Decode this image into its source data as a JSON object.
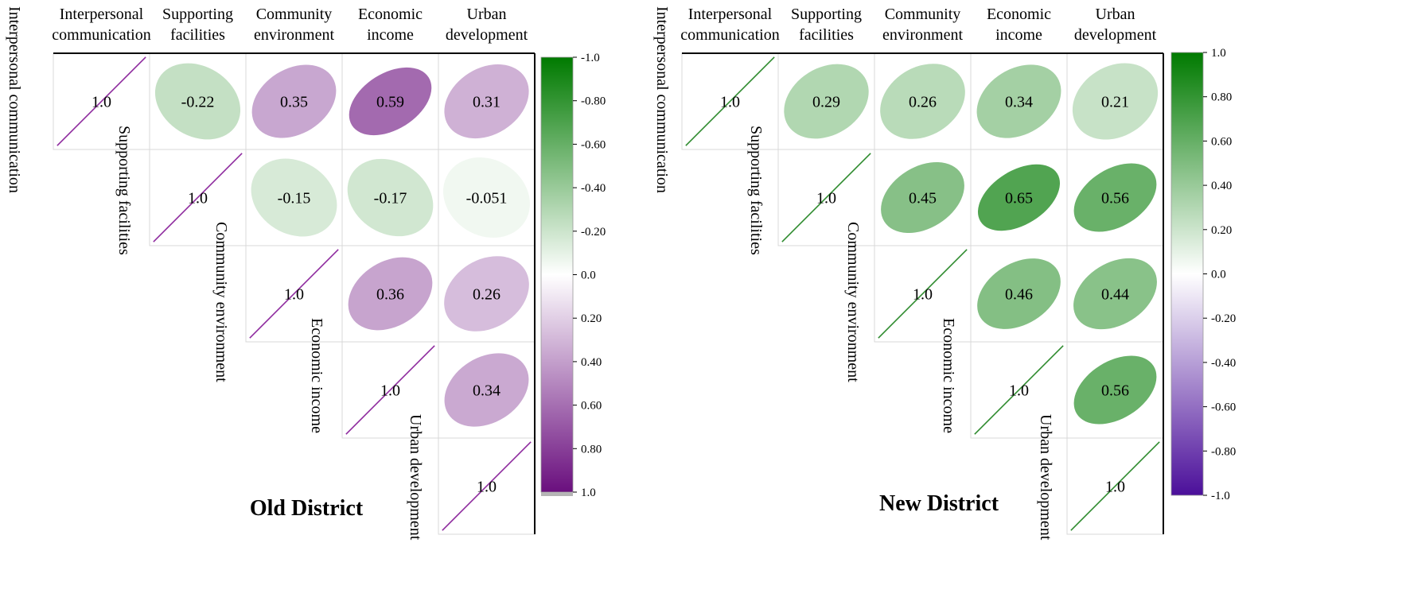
{
  "chart_data": [
    {
      "type": "heatmap",
      "subtype": "correlation-ellipse-upper-triangle",
      "title": "Old District",
      "variables": [
        "Interpersonal communication",
        "Supporting facilities",
        "Community environment",
        "Economic income",
        "Urban development"
      ],
      "column_labels": [
        [
          "Interpersonal",
          "communication"
        ],
        [
          "Supporting",
          "facilities"
        ],
        [
          "Community",
          "environment"
        ],
        [
          "Economic",
          "income"
        ],
        [
          "Urban",
          "development"
        ]
      ],
      "matrix": [
        [
          1.0,
          -0.22,
          0.35,
          0.59,
          0.31
        ],
        [
          null,
          1.0,
          -0.15,
          -0.17,
          -0.051
        ],
        [
          null,
          null,
          1.0,
          0.36,
          0.26
        ],
        [
          null,
          null,
          null,
          1.0,
          0.34
        ],
        [
          null,
          null,
          null,
          null,
          1.0
        ]
      ],
      "cell_labels": [
        [
          "1.0",
          "-0.22",
          "0.35",
          "0.59",
          "0.31"
        ],
        [
          "",
          "1.0",
          "-0.15",
          "-0.17",
          "-0.051"
        ],
        [
          "",
          "",
          "1.0",
          "0.36",
          "0.26"
        ],
        [
          "",
          "",
          "",
          "1.0",
          "0.34"
        ],
        [
          "",
          "",
          "",
          "",
          "1.0"
        ]
      ],
      "colorbar": {
        "range": [
          -1.0,
          1.0
        ],
        "ticks": [
          "-1.0",
          "-0.80",
          "-0.60",
          "-0.40",
          "-0.20",
          "0.0",
          "0.20",
          "0.40",
          "0.60",
          "0.80",
          "1.0"
        ],
        "top_color": "#007a00",
        "mid_color": "#ffffff",
        "bottom_color": "#6a0f7e",
        "positive_hue": "purple",
        "negative_hue": "green"
      }
    },
    {
      "type": "heatmap",
      "subtype": "correlation-ellipse-upper-triangle",
      "title": "New District",
      "variables": [
        "Interpersonal communication",
        "Supporting facilities",
        "Community environment",
        "Economic income",
        "Urban development"
      ],
      "column_labels": [
        [
          "Interpersonal",
          "communication"
        ],
        [
          "Supporting",
          "facilities"
        ],
        [
          "Community",
          "environment"
        ],
        [
          "Economic",
          "income"
        ],
        [
          "Urban",
          "development"
        ]
      ],
      "matrix": [
        [
          1.0,
          0.29,
          0.26,
          0.34,
          0.21
        ],
        [
          null,
          1.0,
          0.45,
          0.65,
          0.56
        ],
        [
          null,
          null,
          1.0,
          0.46,
          0.44
        ],
        [
          null,
          null,
          null,
          1.0,
          0.56
        ],
        [
          null,
          null,
          null,
          null,
          1.0
        ]
      ],
      "cell_labels": [
        [
          "1.0",
          "0.29",
          "0.26",
          "0.34",
          "0.21"
        ],
        [
          "",
          "1.0",
          "0.45",
          "0.65",
          "0.56"
        ],
        [
          "",
          "",
          "1.0",
          "0.46",
          "0.44"
        ],
        [
          "",
          "",
          "",
          "1.0",
          "0.56"
        ],
        [
          "",
          "",
          "",
          "",
          "1.0"
        ]
      ],
      "colorbar": {
        "range": [
          -1.0,
          1.0
        ],
        "ticks": [
          "1.0",
          "0.80",
          "0.60",
          "0.40",
          "0.20",
          "0.0",
          "-0.20",
          "-0.40",
          "-0.60",
          "-0.80",
          "-1.0"
        ],
        "top_color": "#007a00",
        "mid_color": "#ffffff",
        "bottom_color": "#4b0f9a",
        "positive_hue": "green",
        "negative_hue": "purple"
      }
    }
  ],
  "colors": {
    "green": "#2e8b2e",
    "purple": "#8e2a9e",
    "grid": "#d9d9d9",
    "axis": "#000000"
  }
}
